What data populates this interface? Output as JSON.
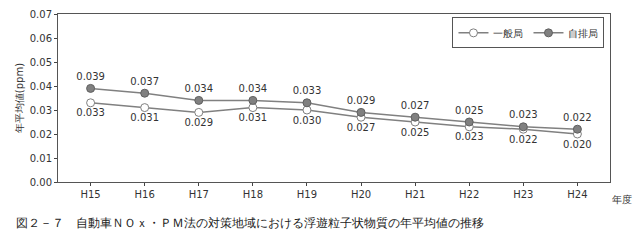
{
  "chart_data": {
    "type": "line",
    "title": "図２－７　自動車ＮＯｘ・ＰＭ法の対策地域における浮遊粒子状物質の年平均値の推移",
    "x_label": "年度",
    "y_label": "年平均値(ppm)",
    "categories": [
      "H15",
      "H16",
      "H17",
      "H18",
      "H19",
      "H20",
      "H21",
      "H22",
      "H23",
      "H24"
    ],
    "series": [
      {
        "name": "一般局",
        "color": "#808080",
        "marker": "open-circle",
        "values": [
          0.033,
          0.031,
          0.029,
          0.031,
          0.03,
          0.027,
          0.025,
          0.023,
          0.022,
          0.02
        ],
        "value_labels": [
          "0.033",
          "0.031",
          "0.029",
          "0.031",
          "0.030",
          "0.027",
          "0.025",
          "0.023",
          "0.022",
          "0.020"
        ]
      },
      {
        "name": "自排局",
        "color": "#808080",
        "marker": "filled-circle",
        "values": [
          0.039,
          0.037,
          0.034,
          0.034,
          0.033,
          0.029,
          0.027,
          0.025,
          0.023,
          0.022
        ],
        "value_labels": [
          "0.039",
          "0.037",
          "0.034",
          "0.034",
          "0.033",
          "0.029",
          "0.027",
          "0.025",
          "0.023",
          "0.022"
        ]
      }
    ],
    "ylim": [
      0,
      0.07
    ],
    "yticks": [
      {
        "value": 0,
        "label": "0.00"
      },
      {
        "value": 0.01,
        "label": "0.01"
      },
      {
        "value": 0.02,
        "label": "0.02"
      },
      {
        "value": 0.03,
        "label": "0.03"
      },
      {
        "value": 0.04,
        "label": "0.04"
      },
      {
        "value": 0.05,
        "label": "0.05"
      },
      {
        "value": 0.06,
        "label": "0.06"
      },
      {
        "value": 0.07,
        "label": "0.07"
      }
    ],
    "grid": false,
    "legend": "upper right",
    "data_labels": true
  }
}
